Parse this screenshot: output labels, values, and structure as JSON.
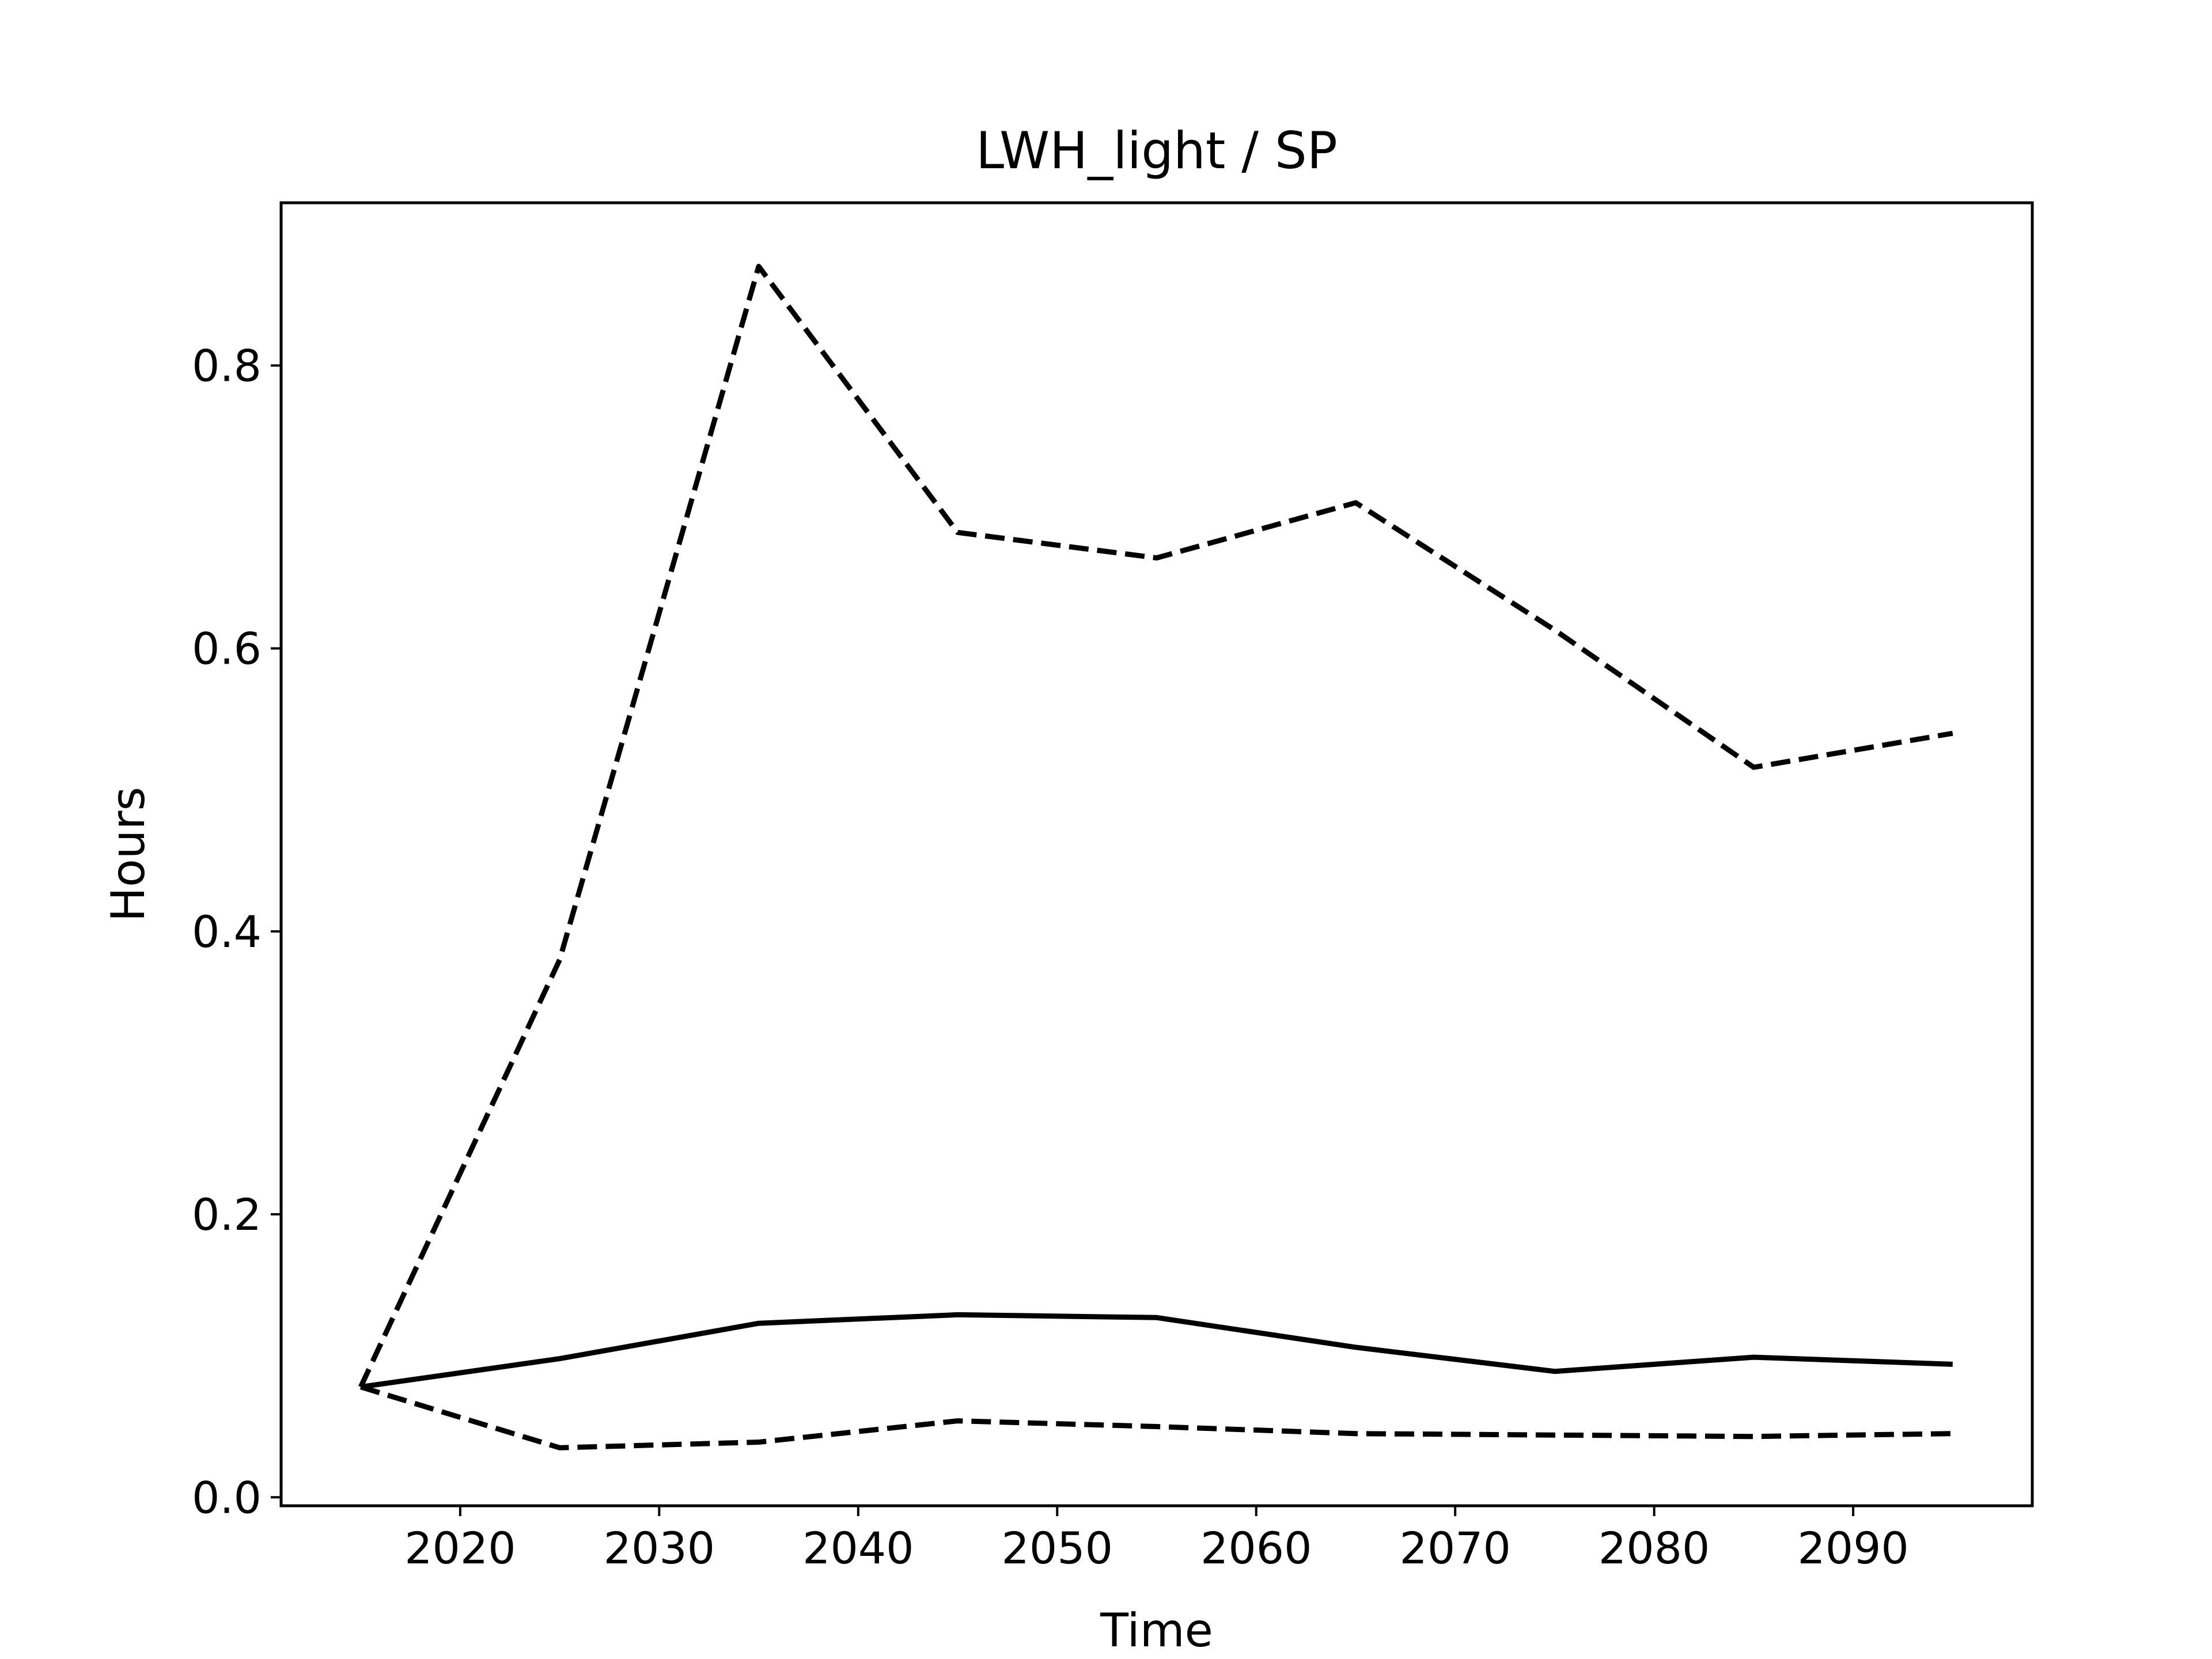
{
  "chart_data": {
    "type": "line",
    "title": "LWH_light / SP",
    "xlabel": "Time",
    "ylabel": "Hours",
    "xlim": [
      2011,
      2099
    ],
    "ylim": [
      -0.006,
      0.915
    ],
    "xticks": [
      2020,
      2030,
      2040,
      2050,
      2060,
      2070,
      2080,
      2090
    ],
    "yticks": [
      0.0,
      0.2,
      0.4,
      0.6,
      0.8
    ],
    "ytick_labels": [
      "0.0",
      "0.2",
      "0.4",
      "0.6",
      "0.8"
    ],
    "grid": false,
    "legend": false,
    "x": [
      2015,
      2025,
      2035,
      2045,
      2055,
      2065,
      2075,
      2085,
      2095
    ],
    "series": [
      {
        "style": "dashed",
        "color": "#000000",
        "values": [
          0.078,
          0.38,
          0.87,
          0.682,
          0.664,
          0.703,
          0.613,
          0.516,
          0.54
        ]
      },
      {
        "style": "solid",
        "color": "#000000",
        "values": [
          0.078,
          0.098,
          0.123,
          0.129,
          0.127,
          0.106,
          0.089,
          0.099,
          0.094
        ]
      },
      {
        "style": "dashed",
        "color": "#000000",
        "values": [
          0.078,
          0.035,
          0.039,
          0.054,
          0.05,
          0.045,
          0.044,
          0.043,
          0.045
        ]
      }
    ]
  }
}
